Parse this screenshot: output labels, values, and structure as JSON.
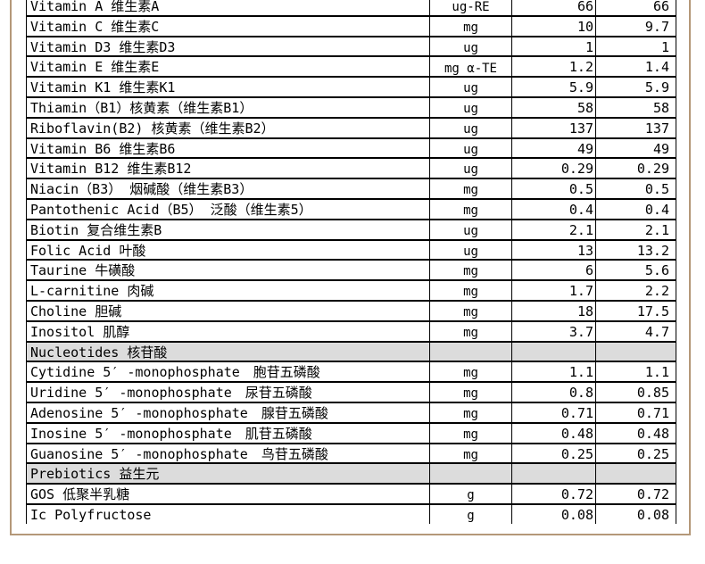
{
  "colors": {
    "frame_border": "#b49879",
    "grid": "#000000",
    "section_row_bg": "#dcdcdc",
    "text": "#000000",
    "background": "#ffffff"
  },
  "table": {
    "columns": [
      "nutrient_name",
      "unit",
      "value_1",
      "value_2"
    ],
    "rows": [
      {
        "type": "item",
        "name": "Vitamin A 维生素A",
        "unit": "ug-RE",
        "v1": "66",
        "v2": "66"
      },
      {
        "type": "item",
        "name": "Vitamin C 维生素C",
        "unit": "mg",
        "v1": "10",
        "v2": "9.7"
      },
      {
        "type": "item",
        "name": "Vitamin D3 维生素D3",
        "unit": "ug",
        "v1": "1",
        "v2": "1"
      },
      {
        "type": "item",
        "name": "Vitamin E 维生素E",
        "unit": "mg α-TE",
        "v1": "1.2",
        "v2": "1.4"
      },
      {
        "type": "item",
        "name": "Vitamin K1 维生素K1",
        "unit": "ug",
        "v1": "5.9",
        "v2": "5.9"
      },
      {
        "type": "item",
        "name": "Thiamin（B1）核黄素（维生素B1）",
        "unit": "ug",
        "v1": "58",
        "v2": "58"
      },
      {
        "type": "item",
        "name": "Riboflavin(B2) 核黄素（维生素B2）",
        "unit": "ug",
        "v1": "137",
        "v2": "137"
      },
      {
        "type": "item",
        "name": "Vitamin B6 维生素B6",
        "unit": "ug",
        "v1": "49",
        "v2": "49"
      },
      {
        "type": "item",
        "name": "Vitamin B12 维生素B12",
        "unit": "ug",
        "v1": "0.29",
        "v2": "0.29"
      },
      {
        "type": "item",
        "name": "Niacin（B3） 烟碱酸（维生素B3）",
        "unit": "mg",
        "v1": "0.5",
        "v2": "0.5"
      },
      {
        "type": "item",
        "name": "Pantothenic Acid（B5） 泛酸（维生素5）",
        "unit": "mg",
        "v1": "0.4",
        "v2": "0.4"
      },
      {
        "type": "item",
        "name": "Biotin 复合维生素B",
        "unit": "ug",
        "v1": "2.1",
        "v2": "2.1"
      },
      {
        "type": "item",
        "name": "Folic Acid 叶酸",
        "unit": "ug",
        "v1": "13",
        "v2": "13.2"
      },
      {
        "type": "item",
        "name": "Taurine 牛磺酸",
        "unit": "mg",
        "v1": "6",
        "v2": "5.6"
      },
      {
        "type": "item",
        "name": "L-carnitine 肉碱",
        "unit": "mg",
        "v1": "1.7",
        "v2": "2.2"
      },
      {
        "type": "item",
        "name": "Choline 胆碱",
        "unit": "mg",
        "v1": "18",
        "v2": "17.5"
      },
      {
        "type": "item",
        "name": "Inositol 肌醇",
        "unit": "mg",
        "v1": "3.7",
        "v2": "4.7"
      },
      {
        "type": "section",
        "name": "Nucleotides 核苷酸",
        "unit": "",
        "v1": "",
        "v2": ""
      },
      {
        "type": "item",
        "name": "Cytidine 5′ -monophosphate　胞苷五磷酸",
        "unit": "mg",
        "v1": "1.1",
        "v2": "1.1"
      },
      {
        "type": "item",
        "name": "Uridine 5′ -monophosphate　尿苷五磷酸",
        "unit": "mg",
        "v1": "0.8",
        "v2": "0.85"
      },
      {
        "type": "item",
        "name": "Adenosine 5′ -monophosphate　腺苷五磷酸",
        "unit": "mg",
        "v1": "0.71",
        "v2": "0.71"
      },
      {
        "type": "item",
        "name": "Inosine 5′ -monophosphate　肌苷五磷酸",
        "unit": "mg",
        "v1": "0.48",
        "v2": "0.48"
      },
      {
        "type": "item",
        "name": "Guanosine 5′ -monophosphate　鸟苷五磷酸",
        "unit": "mg",
        "v1": "0.25",
        "v2": "0.25"
      },
      {
        "type": "section",
        "name": "Prebiotics 益生元",
        "unit": "",
        "v1": "",
        "v2": ""
      },
      {
        "type": "item",
        "name": "GOS 低聚半乳糖",
        "unit": "g",
        "v1": "0.72",
        "v2": "0.72"
      },
      {
        "type": "item",
        "name": "Ic Polyfructose",
        "unit": "g",
        "v1": "0.08",
        "v2": "0.08"
      }
    ]
  }
}
